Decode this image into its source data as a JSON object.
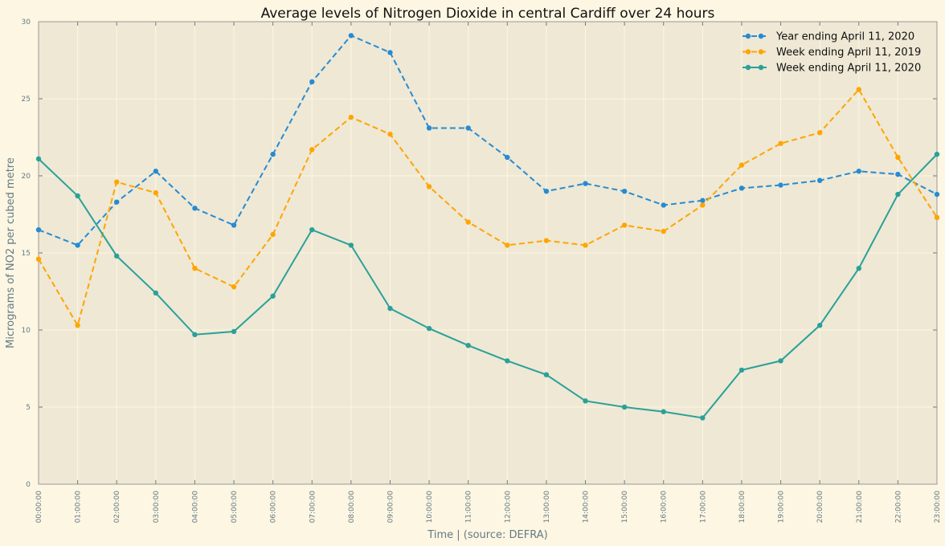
{
  "chart_data": {
    "type": "line",
    "title": "Average levels of Nitrogen Dioxide in central Cardiff over 24 hours",
    "xlabel": "Time | (source: DEFRA)",
    "ylabel": "Micrograms of NO2 per cubed metre",
    "ylim": [
      0,
      30
    ],
    "yticks": [
      "0",
      "5",
      "10",
      "15",
      "20",
      "25",
      "30"
    ],
    "categories": [
      "00:00:00",
      "01:00:00",
      "02:00:00",
      "03:00:00",
      "04:00:00",
      "05:00:00",
      "06:00:00",
      "07:00:00",
      "08:00:00",
      "09:00:00",
      "10:00:00",
      "11:00:00",
      "12:00:00",
      "13:00:00",
      "14:00:00",
      "15:00:00",
      "16:00:00",
      "17:00:00",
      "18:00:00",
      "19:00:00",
      "20:00:00",
      "21:00:00",
      "22:00:00",
      "23:00:00"
    ],
    "grid": true,
    "legend_position": "top-right",
    "series": [
      {
        "name": "Year ending April 11, 2020",
        "color": "#268bd2",
        "style": "dashed",
        "values": [
          16.5,
          15.5,
          18.3,
          20.3,
          17.9,
          16.8,
          21.4,
          26.1,
          29.1,
          28.0,
          23.1,
          23.1,
          21.2,
          19.0,
          19.5,
          19.0,
          18.1,
          18.4,
          19.2,
          19.4,
          19.7,
          20.3,
          20.1,
          18.8
        ]
      },
      {
        "name": "Week ending April 11, 2019",
        "color": "#ffa500",
        "style": "dashed",
        "values": [
          14.6,
          10.3,
          19.6,
          18.9,
          14.0,
          12.8,
          16.2,
          21.7,
          23.8,
          22.7,
          19.3,
          17.0,
          15.5,
          15.8,
          15.5,
          16.8,
          16.4,
          18.1,
          20.7,
          22.1,
          22.8,
          25.6,
          21.2,
          17.3
        ]
      },
      {
        "name": "Week ending April 11, 2020",
        "color": "#2aa198",
        "style": "solid",
        "values": [
          21.1,
          18.7,
          14.8,
          12.4,
          9.7,
          9.9,
          12.2,
          16.5,
          15.5,
          11.4,
          10.1,
          9.0,
          8.0,
          7.1,
          5.4,
          5.0,
          4.7,
          4.3,
          7.4,
          8.0,
          10.3,
          14.0,
          18.8,
          21.4
        ]
      }
    ]
  }
}
